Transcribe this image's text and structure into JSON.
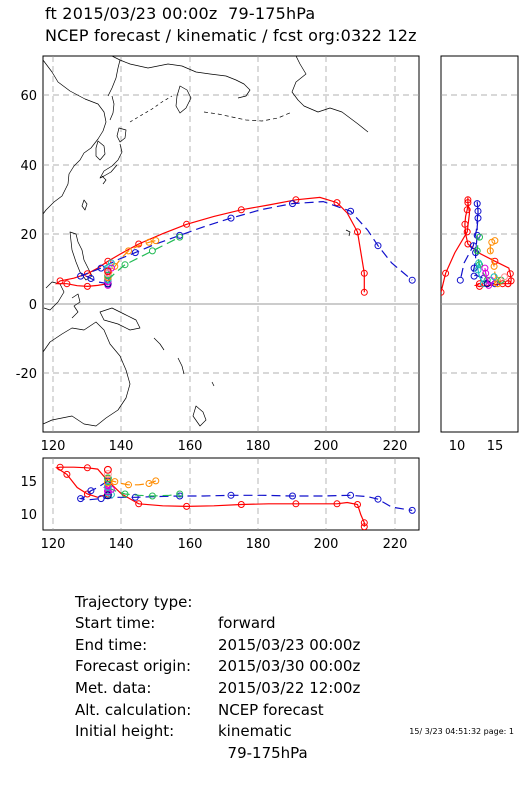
{
  "title": {
    "line1": "ft 2015/03/23 00:00z  79-175hPa",
    "line2": "NCEP forecast / kinematic / fcst org:0322 12z"
  },
  "main_map": {
    "xlim": [
      115,
      225
    ],
    "ylim": [
      -37,
      72
    ],
    "x_ticks": [
      "120",
      "140",
      "160",
      "180",
      "200",
      "220"
    ],
    "y_ticks": [
      "60",
      "40",
      "20",
      "0",
      "-20"
    ]
  },
  "side_panel": {
    "xlim": [
      8,
      18
    ],
    "x_ticks": [
      "10",
      "15"
    ]
  },
  "bottom_panel": {
    "ylim": [
      7.5,
      18.5
    ],
    "y_ticks": [
      "15",
      "10"
    ],
    "x_ticks": [
      "120",
      "140",
      "160",
      "180",
      "200",
      "220"
    ]
  },
  "info": [
    {
      "label": "Trajectory type:",
      "value": "forward"
    },
    {
      "label": "Start time:",
      "value": "2015/03/23 00:00z"
    },
    {
      "label": "End time:",
      "value": "2015/03/30 00:00z"
    },
    {
      "label": "Forecast origin:",
      "value": "2015/03/22 12:00z"
    },
    {
      "label": "Met. data:",
      "value": "NCEP forecast"
    },
    {
      "label": "Alt. calculation:",
      "value": "kinematic"
    },
    {
      "label": "Initial height:",
      "value": "  79-175hPa"
    }
  ],
  "footer": "15/ 3/23 04:51:32 page: 1",
  "colors": {
    "red": "#ff0000",
    "blue": "#1010cc",
    "orange": "#ff8c00",
    "green": "#22bb55",
    "cyan": "#20c0c0",
    "magenta": "#dd00dd",
    "darkblue": "#000088",
    "pink": "#ff9999"
  },
  "trajectories": [
    {
      "name": "red",
      "color": "red",
      "dash": false,
      "lon": [
        134,
        131,
        128,
        125,
        122,
        119,
        120,
        124,
        128,
        131,
        134,
        138,
        143,
        150,
        157,
        165,
        173,
        181,
        189,
        196,
        201,
        204,
        207,
        208,
        209,
        209
      ],
      "lat": [
        6,
        5.5,
        5.2,
        5.4,
        6,
        6,
        6.8,
        7.6,
        8.9,
        10.5,
        12.5,
        14.8,
        17.5,
        20.5,
        23.2,
        25.5,
        27.4,
        28.8,
        30.3,
        31,
        29.5,
        26.5,
        21,
        15,
        9,
        3.5
      ],
      "hgt": [
        13,
        12.5,
        13,
        14,
        16,
        17,
        17.1,
        17.1,
        17,
        16.8,
        15,
        13,
        11.5,
        11.2,
        11.1,
        11.2,
        11.4,
        11.5,
        11.5,
        11.5,
        11.5,
        11.7,
        11.4,
        9.8,
        8.6,
        8
      ]
    },
    {
      "name": "blue",
      "color": "blue",
      "dash": true,
      "lon": [
        134,
        131,
        129,
        127,
        126,
        128,
        132,
        137,
        142,
        148,
        155,
        162,
        170,
        179,
        188,
        197,
        205,
        210,
        213,
        217,
        223
      ],
      "lat": [
        6,
        6.5,
        7.5,
        8.5,
        8.2,
        9,
        10.5,
        13,
        15,
        17.5,
        20,
        22.5,
        25,
        27.5,
        29.2,
        29.8,
        27,
        21.5,
        17,
        12,
        7
      ],
      "hgt": [
        15,
        14,
        13.5,
        12.5,
        12.3,
        12.1,
        12.3,
        12.5,
        12.5,
        12.6,
        12.7,
        12.7,
        12.8,
        12.8,
        12.7,
        12.7,
        12.8,
        12.6,
        12.2,
        11,
        10.5
      ]
    },
    {
      "name": "orange",
      "color": "orange",
      "dash": true,
      "lon": [
        134,
        135,
        136,
        138,
        140,
        143,
        146,
        148
      ],
      "lat": [
        7,
        9,
        11,
        13.5,
        15.5,
        17,
        18,
        18.5
      ],
      "hgt": [
        15.3,
        15,
        14.9,
        14.6,
        14.4,
        14.4,
        14.6,
        15
      ]
    },
    {
      "name": "green",
      "color": "green",
      "dash": true,
      "lon": [
        134,
        136,
        139,
        143,
        147,
        152,
        155
      ],
      "lat": [
        7,
        9,
        11.5,
        13.5,
        15.5,
        18,
        19.5
      ],
      "hgt": [
        14,
        13.5,
        13,
        12.8,
        12.7,
        12.8,
        13
      ]
    },
    {
      "name": "cyan",
      "color": "cyan",
      "dash": false,
      "lon": [
        134,
        135,
        134,
        133,
        135
      ],
      "lat": [
        6,
        8,
        10,
        11,
        12
      ],
      "hgt": [
        13.5,
        13,
        12.8,
        12.8,
        12.9
      ]
    },
    {
      "name": "magenta",
      "color": "magenta",
      "dash": false,
      "lon": [
        134,
        133,
        134,
        135
      ],
      "lat": [
        5.5,
        7,
        9,
        10.5
      ],
      "hgt": [
        14.2,
        14,
        13.8,
        13.7
      ]
    }
  ]
}
